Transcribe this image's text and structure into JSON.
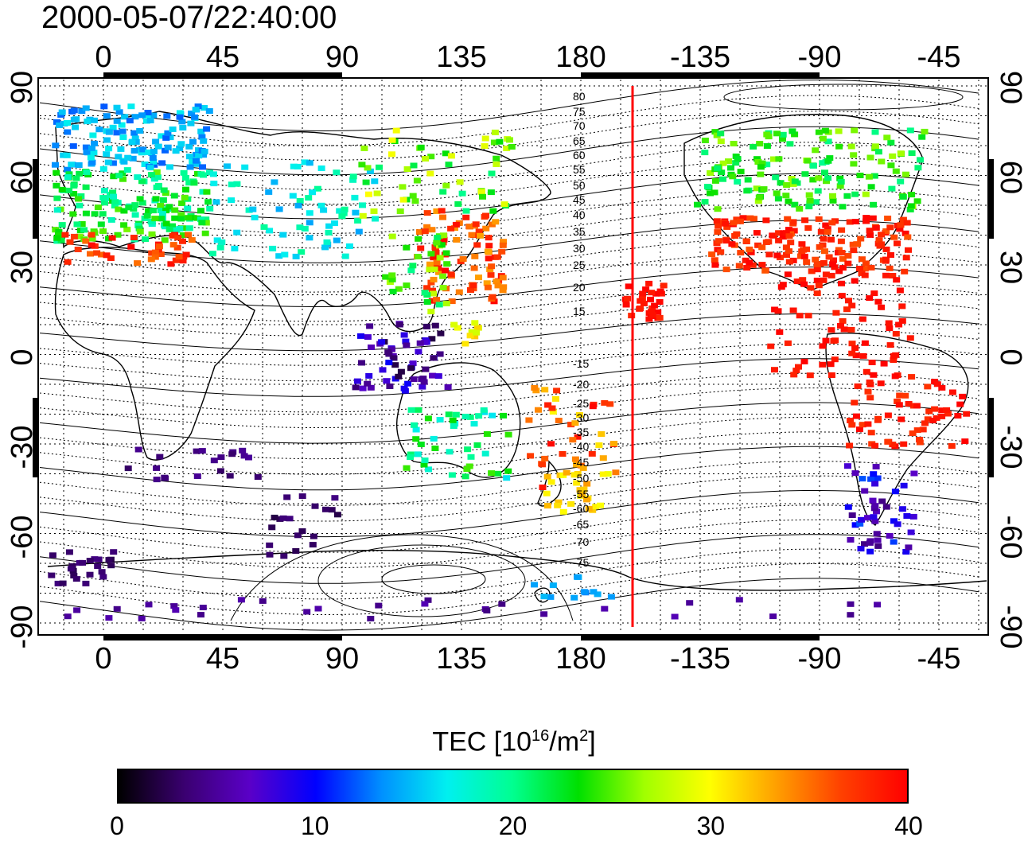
{
  "title": "2000-05-07/22:40:00",
  "map": {
    "top_lon_ticks": [
      "0",
      "45",
      "90",
      "135",
      "180",
      "-135",
      "-90",
      "-45"
    ],
    "bottom_lon_ticks": [
      "0",
      "45",
      "90",
      "135",
      "180",
      "-135",
      "-90",
      "-45"
    ],
    "left_lat_ticks": [
      "90",
      "60",
      "30",
      "0",
      "-30",
      "-60",
      "-90"
    ],
    "right_lat_ticks": [
      "90",
      "60",
      "30",
      "0",
      "-30",
      "-60",
      "-90"
    ],
    "magnetic_latitude_labels": [
      "80",
      "75",
      "70",
      "65",
      "60",
      "55",
      "50",
      "45",
      "40",
      "35",
      "30",
      "25",
      "20",
      "15",
      "-15",
      "-20",
      "-25",
      "-30",
      "-35",
      "-40",
      "-45",
      "-50",
      "-55",
      "-60",
      "-65",
      "-70",
      "-75"
    ],
    "sunrise_line_color": "#ff0000",
    "frame_color": "#000000"
  },
  "colorbar": {
    "label_main": "TEC  [10",
    "label_exp": "16",
    "label_mid": "/m",
    "label_exp2": "2",
    "label_end": "]",
    "tick_labels": [
      "0",
      "10",
      "20",
      "30",
      "40"
    ],
    "min": 0,
    "max": 40,
    "gradient": [
      "#000000",
      "#3a0070",
      "#5a00c8",
      "#0000ff",
      "#0090ff",
      "#00f0f0",
      "#00ff90",
      "#00e000",
      "#a0ff00",
      "#ffff00",
      "#ffa000",
      "#ff4000",
      "#ff0000"
    ]
  }
}
